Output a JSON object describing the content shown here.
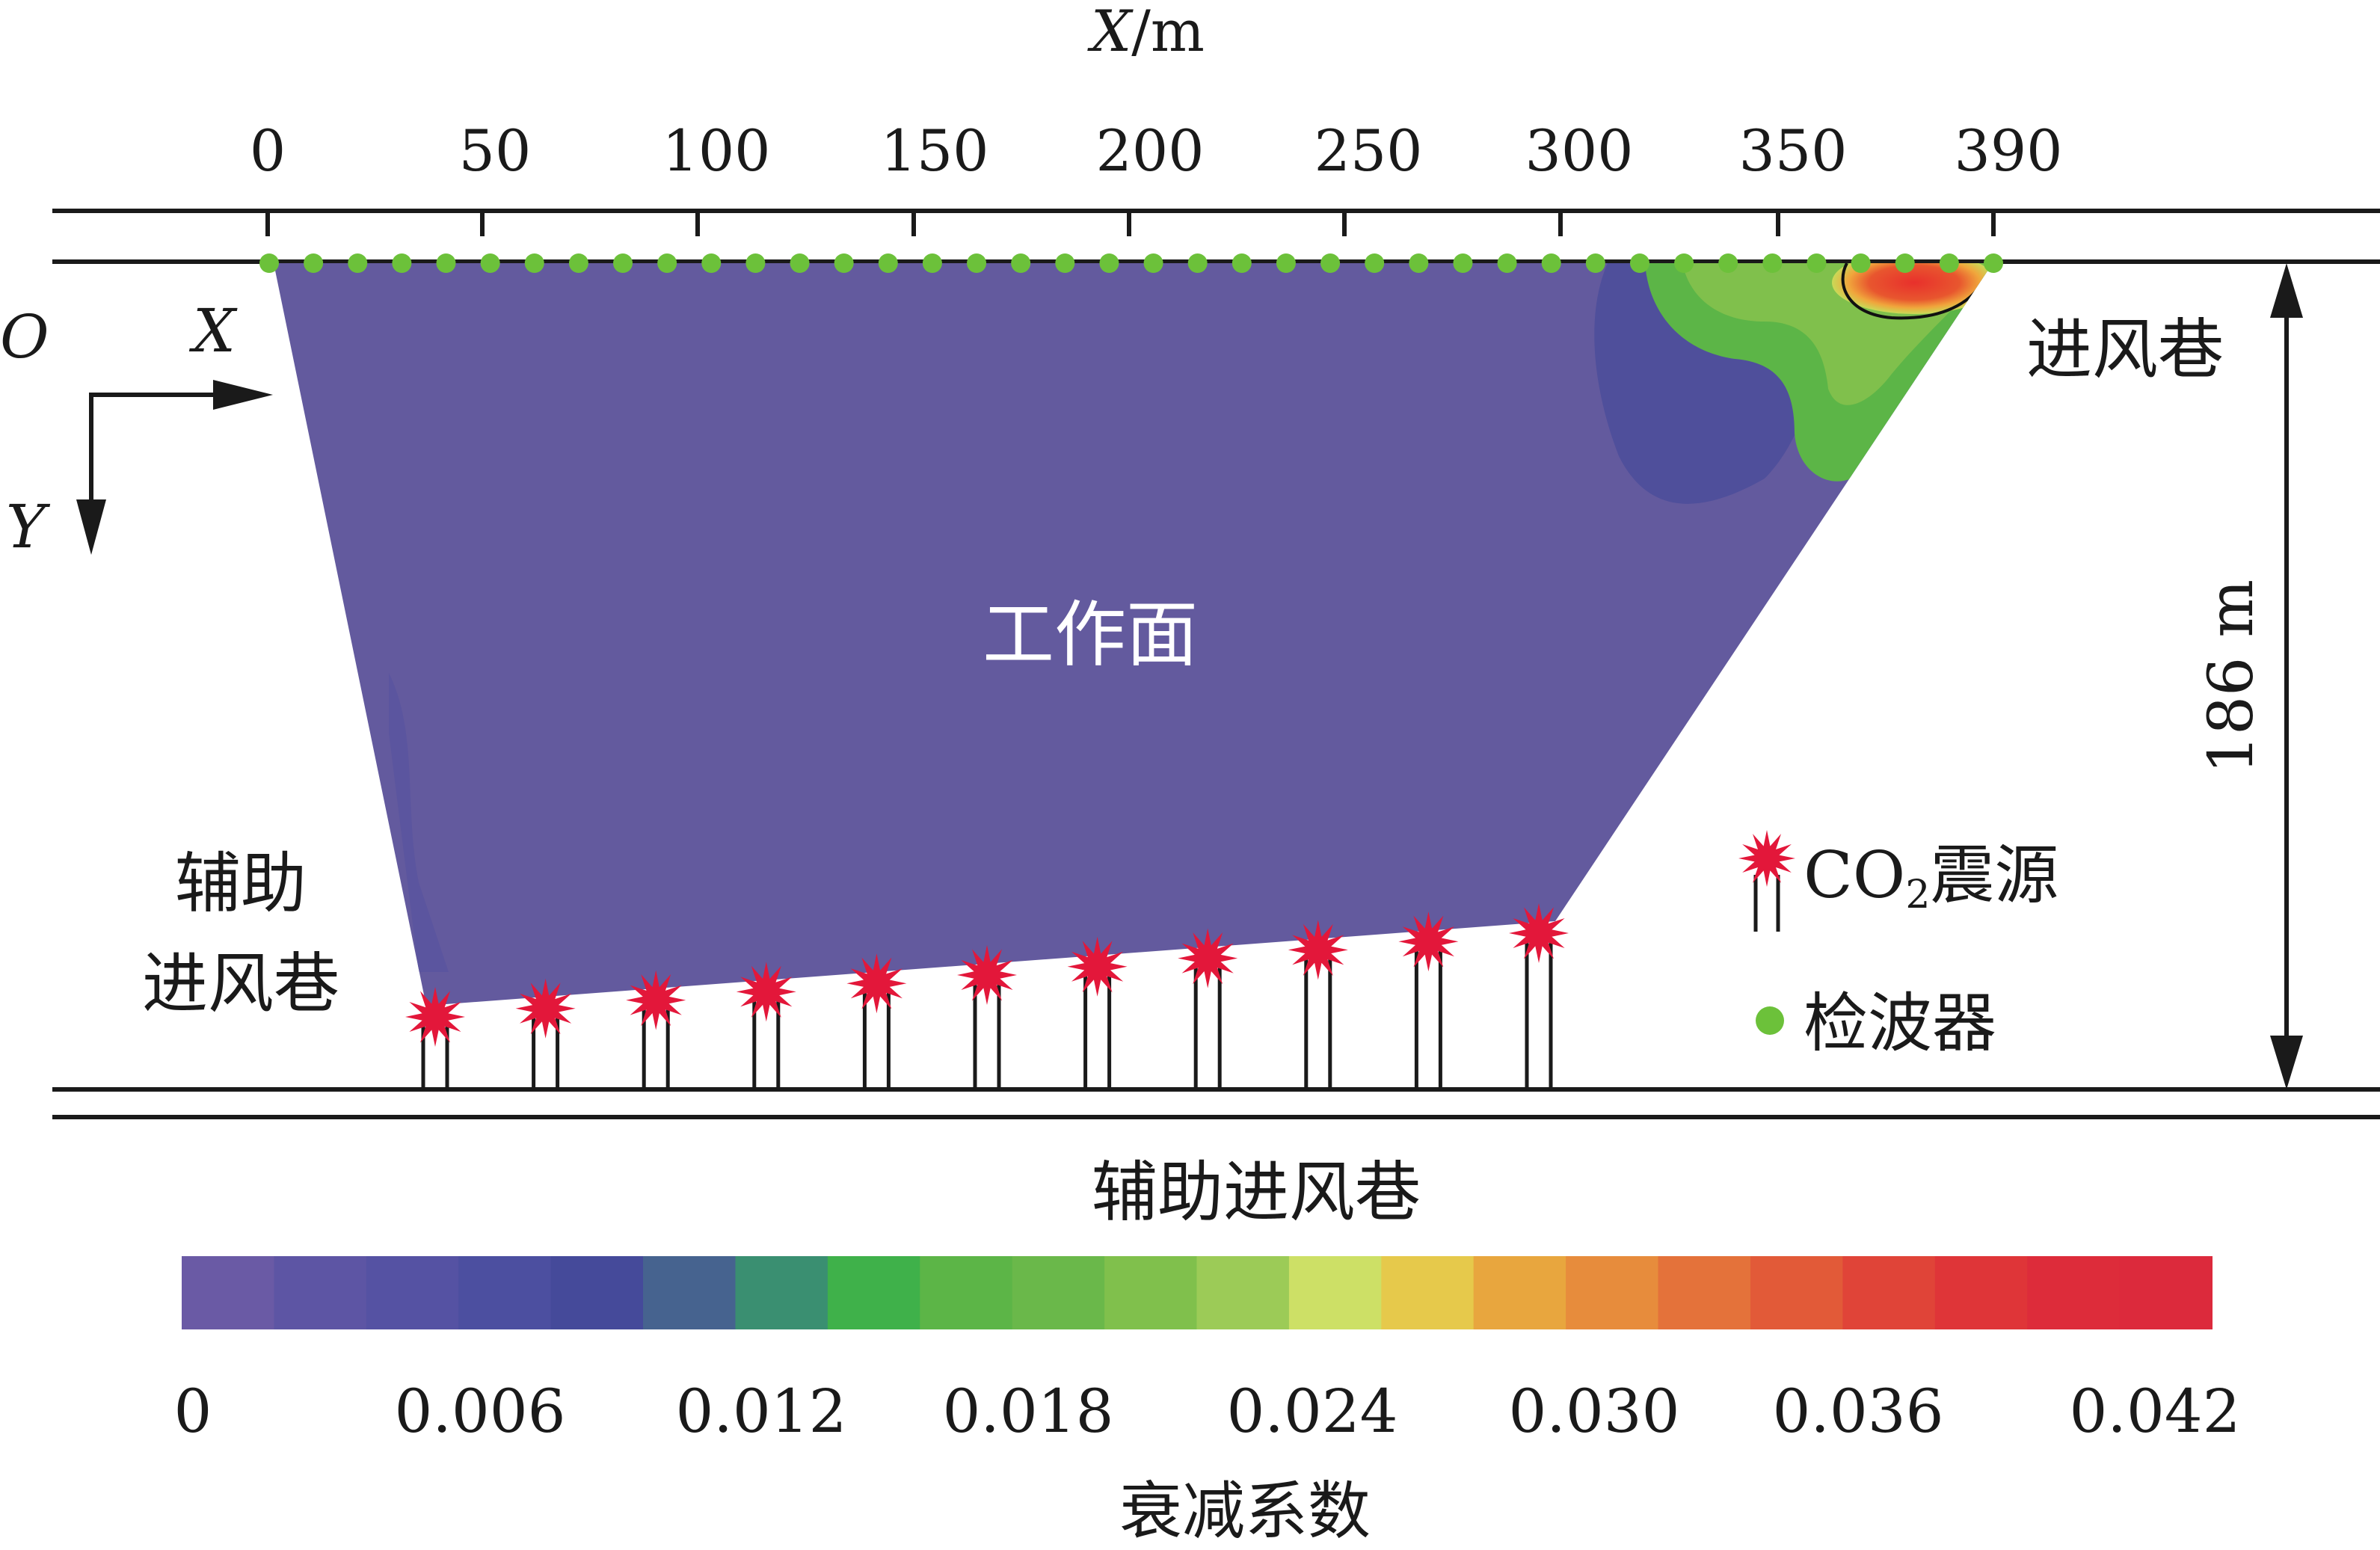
{
  "x_axis": {
    "title_var": "X",
    "title_unit": "/m",
    "ticks": [
      "0",
      "50",
      "100",
      "150",
      "200",
      "250",
      "300",
      "350",
      "390"
    ]
  },
  "axes_labels": {
    "origin": "O",
    "x": "X",
    "y": "Y"
  },
  "labels": {
    "face": "工作面",
    "intake_roadway": "进风巷",
    "aux_left_line1": "辅助",
    "aux_left_line2": "进风巷",
    "aux_bottom": "辅助进风巷",
    "dimension": "186 m"
  },
  "legend": {
    "source_prefix": "CO",
    "source_sub": "2",
    "source_suffix": "震源",
    "geophone": "检波器"
  },
  "colorbar": {
    "title": "衰减系数",
    "tick_labels": [
      "0",
      "0.006",
      "0.012",
      "0.018",
      "0.024",
      "0.030",
      "0.036",
      "0.042"
    ],
    "range": [
      0,
      0.042
    ],
    "colors": [
      "#6a5aa5",
      "#5d55a4",
      "#5552a3",
      "#4c4fa0",
      "#454a9a",
      "#46638f",
      "#3a8f71",
      "#3fb14a",
      "#5cb547",
      "#6ab84a",
      "#80c04c",
      "#9ccb57",
      "#cde066",
      "#e6c94b",
      "#e8a63e",
      "#e78c3c",
      "#e4723a",
      "#e25a38",
      "#e04438",
      "#df3538",
      "#dd2c3a",
      "#dc2a3c"
    ]
  },
  "colors": {
    "field": "#635a9e",
    "low_patch": "#4f4f9b",
    "geophone": "#6cc13a",
    "source": "#e3173a",
    "anomaly_green": "#5cb547",
    "anomaly_red": "#e53f2c"
  },
  "geophone_count": 40,
  "source_count": 11
}
